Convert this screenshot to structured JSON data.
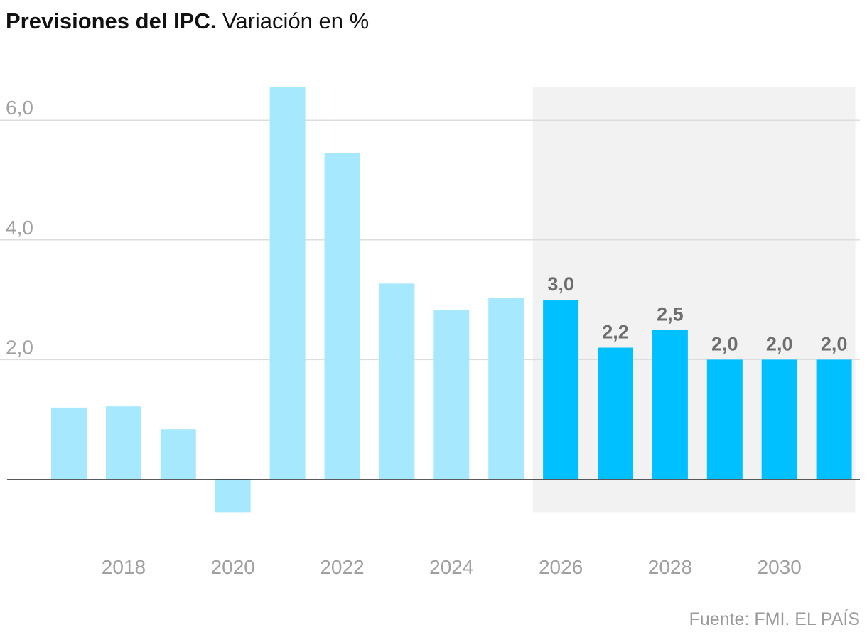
{
  "title": {
    "bold": "Previsiones del IPC.",
    "light": "Variación en %"
  },
  "source": "Fuente: FMI. EL PAÍS",
  "colors": {
    "historical": "#a6e8fd",
    "forecast": "#00c0ff",
    "forecast_band": "#f2f2f2",
    "grid": "#dddddd",
    "axis_text": "#a0a0a0",
    "value_label": "#6e6e6e",
    "zero_line": "#222222"
  },
  "chart_data": {
    "type": "bar",
    "title": "Previsiones del IPC.",
    "subtitle": "Variación en %",
    "x": [
      2017,
      2018,
      2019,
      2020,
      2021,
      2022,
      2023,
      2024,
      2025,
      2026,
      2027,
      2028,
      2029,
      2030,
      2031
    ],
    "values": [
      1.2,
      1.22,
      0.84,
      -0.55,
      6.55,
      5.45,
      3.27,
      2.83,
      3.03,
      3.0,
      2.2,
      2.5,
      2.0,
      2.0,
      2.0
    ],
    "forecast_from": 2026,
    "data_labels": [
      "",
      "",
      "",
      "",
      "",
      "",
      "",
      "",
      "",
      "3,0",
      "2,2",
      "2,5",
      "2,0",
      "2,0",
      "2,0"
    ],
    "x_tick_labels": [
      "2018",
      "2020",
      "2022",
      "2024",
      "2026",
      "2028",
      "2030"
    ],
    "y_tick_labels": [
      "2,0",
      "4,0",
      "6,0"
    ],
    "y_ticks": [
      2,
      4,
      6
    ],
    "ylim": [
      -0.55,
      6.55
    ],
    "xlabel": "",
    "ylabel": "",
    "grid": true,
    "legend": "none"
  }
}
